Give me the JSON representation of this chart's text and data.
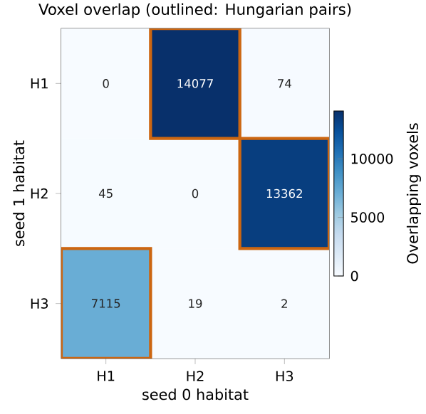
{
  "chart_data": {
    "type": "heatmap",
    "title": "Voxel overlap (outlined: Hungarian pairs)",
    "xlabel": "seed 0 habitat",
    "ylabel": "seed 1 habitat",
    "clabel": "Overlapping voxels",
    "categories": [
      "H1",
      "H2",
      "H3"
    ],
    "y_categories": [
      "H1",
      "H2",
      "H3"
    ],
    "cells": [
      [
        0,
        14077,
        74
      ],
      [
        45,
        0,
        13362
      ],
      [
        7115,
        19,
        2
      ]
    ],
    "data_labels": true,
    "clim": [
      0,
      14077
    ],
    "cticks": [
      0,
      5000,
      10000
    ]
  }
}
